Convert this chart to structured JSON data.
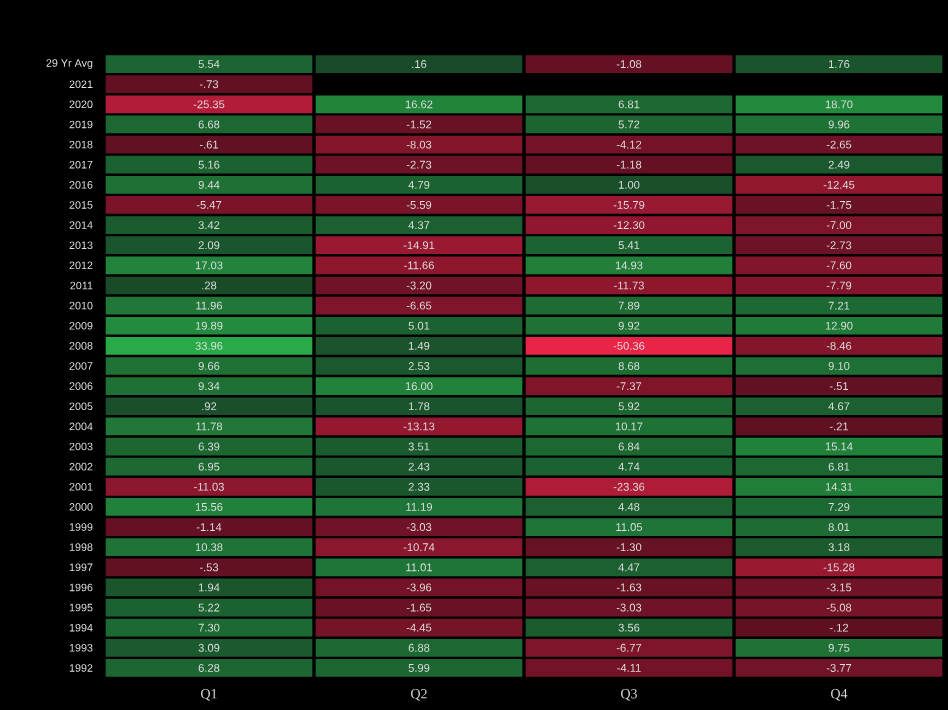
{
  "chart_data": {
    "type": "heatmap",
    "categories": [
      "Q1",
      "Q2",
      "Q3",
      "Q4"
    ],
    "y_categories": [
      "29 Yr Avg",
      "2021",
      "2020",
      "2019",
      "2018",
      "2017",
      "2016",
      "2015",
      "2014",
      "2013",
      "2012",
      "2011",
      "2010",
      "2009",
      "2008",
      "2007",
      "2006",
      "2005",
      "2004",
      "2003",
      "2002",
      "2001",
      "2000",
      "1999",
      "1998",
      "1997",
      "1996",
      "1995",
      "1994",
      "1993",
      "1992"
    ],
    "cells": [
      [
        5.54,
        0.16,
        -1.08,
        1.76
      ],
      [
        -0.73,
        null,
        null,
        null
      ],
      [
        -25.35,
        16.62,
        6.81,
        18.7
      ],
      [
        6.68,
        -1.52,
        5.72,
        9.96
      ],
      [
        -0.61,
        -8.03,
        -4.12,
        -2.65
      ],
      [
        5.16,
        -2.73,
        -1.18,
        2.49
      ],
      [
        9.44,
        4.79,
        1.0,
        -12.45
      ],
      [
        -5.47,
        -5.59,
        -15.79,
        -1.75
      ],
      [
        3.42,
        4.37,
        -12.3,
        -7.0
      ],
      [
        2.09,
        -14.91,
        5.41,
        -2.73
      ],
      [
        17.03,
        -11.66,
        14.93,
        -7.6
      ],
      [
        0.28,
        -3.2,
        -11.73,
        -7.79
      ],
      [
        11.96,
        -6.65,
        7.89,
        7.21
      ],
      [
        19.89,
        5.01,
        9.92,
        12.9
      ],
      [
        33.96,
        1.49,
        -50.36,
        -8.46
      ],
      [
        9.66,
        2.53,
        8.68,
        9.1
      ],
      [
        9.34,
        16.0,
        -7.37,
        -0.51
      ],
      [
        0.92,
        1.78,
        5.92,
        4.67
      ],
      [
        11.78,
        -13.13,
        10.17,
        -0.21
      ],
      [
        6.39,
        3.51,
        6.84,
        15.14
      ],
      [
        6.95,
        2.43,
        4.74,
        6.81
      ],
      [
        -11.03,
        2.33,
        -23.36,
        14.31
      ],
      [
        15.56,
        11.19,
        4.48,
        7.29
      ],
      [
        -1.14,
        -3.03,
        11.05,
        8.01
      ],
      [
        10.38,
        -10.74,
        -1.3,
        3.18
      ],
      [
        -0.53,
        11.01,
        4.47,
        -15.28
      ],
      [
        1.94,
        -3.96,
        -1.63,
        -3.15
      ],
      [
        5.22,
        -1.65,
        -3.03,
        -5.08
      ],
      [
        7.3,
        -4.45,
        3.56,
        -0.12
      ],
      [
        3.09,
        6.88,
        -6.77,
        9.75
      ],
      [
        6.28,
        5.99,
        -4.11,
        -3.77
      ]
    ],
    "cell_labels": [
      [
        "5.54",
        ".16",
        "-1.08",
        "1.76"
      ],
      [
        "-.73",
        null,
        null,
        null
      ],
      [
        "-25.35",
        "16.62",
        "6.81",
        "18.70"
      ],
      [
        "6.68",
        "-1.52",
        "5.72",
        "9.96"
      ],
      [
        "-.61",
        "-8.03",
        "-4.12",
        "-2.65"
      ],
      [
        "5.16",
        "-2.73",
        "-1.18",
        "2.49"
      ],
      [
        "9.44",
        "4.79",
        "1.00",
        "-12.45"
      ],
      [
        "-5.47",
        "-5.59",
        "-15.79",
        "-1.75"
      ],
      [
        "3.42",
        "4.37",
        "-12.30",
        "-7.00"
      ],
      [
        "2.09",
        "-14.91",
        "5.41",
        "-2.73"
      ],
      [
        "17.03",
        "-11.66",
        "14.93",
        "-7.60"
      ],
      [
        ".28",
        "-3.20",
        "-11.73",
        "-7.79"
      ],
      [
        "11.96",
        "-6.65",
        "7.89",
        "7.21"
      ],
      [
        "19.89",
        "5.01",
        "9.92",
        "12.90"
      ],
      [
        "33.96",
        "1.49",
        "-50.36",
        "-8.46"
      ],
      [
        "9.66",
        "2.53",
        "8.68",
        "9.10"
      ],
      [
        "9.34",
        "16.00",
        "-7.37",
        "-.51"
      ],
      [
        ".92",
        "1.78",
        "5.92",
        "4.67"
      ],
      [
        "11.78",
        "-13.13",
        "10.17",
        "-.21"
      ],
      [
        "6.39",
        "3.51",
        "6.84",
        "15.14"
      ],
      [
        "6.95",
        "2.43",
        "4.74",
        "6.81"
      ],
      [
        "-11.03",
        "2.33",
        "-23.36",
        "14.31"
      ],
      [
        "15.56",
        "11.19",
        "4.48",
        "7.29"
      ],
      [
        "-1.14",
        "-3.03",
        "11.05",
        "8.01"
      ],
      [
        "10.38",
        "-10.74",
        "-1.30",
        "3.18"
      ],
      [
        "-.53",
        "11.01",
        "4.47",
        "-15.28"
      ],
      [
        "1.94",
        "-3.96",
        "-1.63",
        "-3.15"
      ],
      [
        "5.22",
        "-1.65",
        "-3.03",
        "-5.08"
      ],
      [
        "7.30",
        "-4.45",
        "3.56",
        "-.12"
      ],
      [
        "3.09",
        "6.88",
        "-6.77",
        "9.75"
      ],
      [
        "6.28",
        "5.99",
        "-4.11",
        "-3.77"
      ]
    ]
  }
}
